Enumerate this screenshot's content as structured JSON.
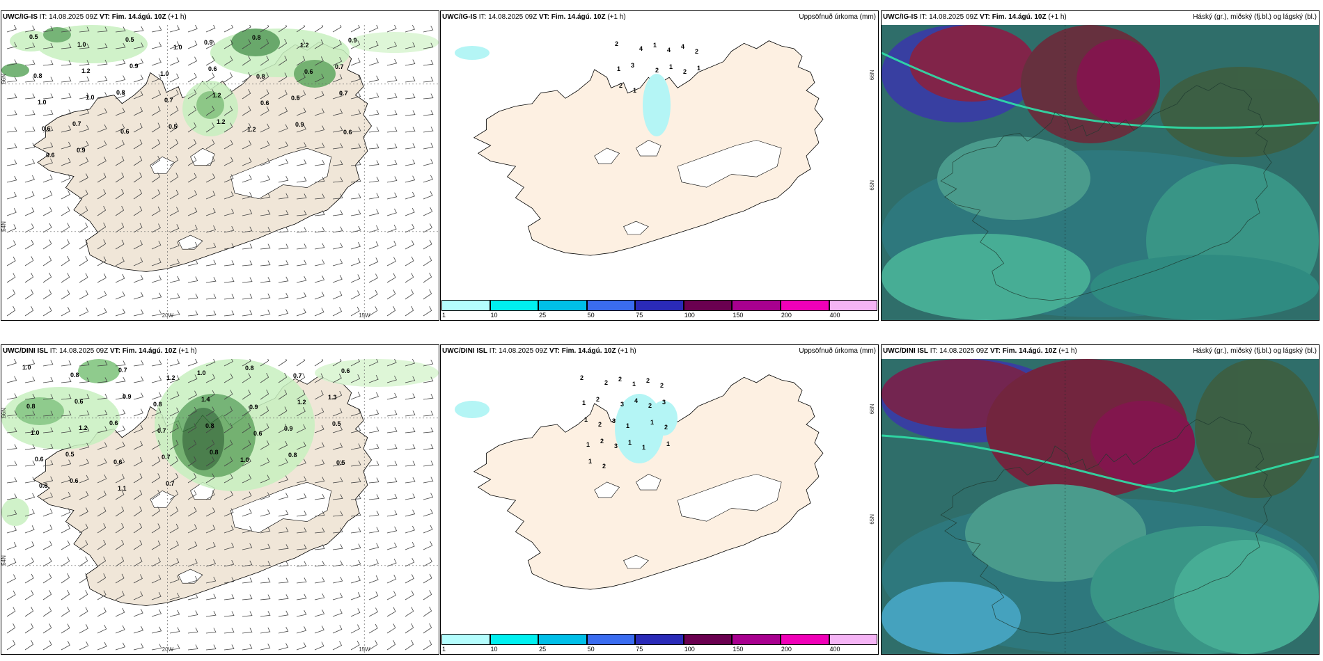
{
  "panels": {
    "p1": {
      "model": "UWC/IG-IS",
      "it_label": "IT:",
      "it": "14.08.2025 09Z",
      "vt_label": "VT:",
      "vt": "Fim. 14.ágú. 10Z",
      "lead": "(+1 h)",
      "right_title": ""
    },
    "p2": {
      "model": "UWC/IG-IS",
      "it_label": "IT:",
      "it": "14.08.2025 09Z",
      "vt_label": "VT:",
      "vt": "Fim. 14.ágú. 10Z",
      "lead": "(+1 h)",
      "right_title": "Uppsöfnuð úrkoma (mm)"
    },
    "p3": {
      "model": "UWC/IG-IS",
      "it_label": "IT:",
      "it": "14.08.2025 09Z",
      "vt_label": "VT:",
      "vt": "Fim. 14.ágú. 10Z",
      "lead": "(+1 h)",
      "right_title": "Háský (gr.), miðský (fj.bl.) og lágský (bl.)"
    },
    "p4": {
      "model": "UWC/DINI ISL",
      "it_label": "IT:",
      "it": "14.08.2025 09Z",
      "vt_label": "VT:",
      "vt": "Fim. 14.ágú. 10Z",
      "lead": "(+1 h)",
      "right_title": ""
    },
    "p5": {
      "model": "UWC/DINI ISL",
      "it_label": "IT:",
      "it": "14.08.2025 09Z",
      "vt_label": "VT:",
      "vt": "Fim. 14.ágú. 10Z",
      "lead": "(+1 h)",
      "right_title": "Uppsöfnuð úrkoma (mm)"
    },
    "p6": {
      "model": "UWC/DINI ISL",
      "it_label": "IT:",
      "it": "14.08.2025 09Z",
      "vt_label": "VT:",
      "vt": "Fim. 14.ágú. 10Z",
      "lead": "(+1 h)",
      "right_title": "Háský (gr.), miðský (fj.bl.) og lágský (bl.)"
    }
  },
  "axis_labels": {
    "lon_20w": "20W",
    "lon_15w": "15W",
    "lat_66n": "66N",
    "lat_64n": "64N",
    "lat_65n": "65N"
  },
  "colorbar": {
    "colors": [
      "#b4fdfd",
      "#00f0f0",
      "#00bfe8",
      "#3a6cf0",
      "#2a2ab8",
      "#6a0050",
      "#a8008f",
      "#f000b8",
      "#f5b4f5"
    ],
    "labels": [
      "1",
      "10",
      "25",
      "50",
      "75",
      "100",
      "150",
      "200",
      "400"
    ]
  },
  "precip_top": [
    "0.5",
    "1.0",
    "0.5",
    "1.0",
    "0.9",
    "0.8",
    "1.2",
    "0.9",
    "0.8",
    "1.2",
    "0.9",
    "1.0",
    "0.6",
    "0.8",
    "0.6",
    "0.7",
    "1.0",
    "1.0",
    "0.8",
    "0.7",
    "1.2",
    "0.6",
    "0.5",
    "0.7",
    "0.6",
    "0.7",
    "0.6",
    "0.5",
    "1.2",
    "1.2",
    "0.9",
    "0.6",
    "0.6",
    "0.9"
  ],
  "precip_bottom": [
    "1.0",
    "0.8",
    "0.7",
    "1.2",
    "1.0",
    "0.8",
    "0.7",
    "0.6",
    "0.8",
    "0.6",
    "0.9",
    "0.8",
    "1.4",
    "0.9",
    "1.2",
    "1.3",
    "1.0",
    "1.2",
    "0.6",
    "0.7",
    "0.8",
    "0.6",
    "0.9",
    "0.5",
    "0.6",
    "0.5",
    "0.6",
    "0.7",
    "0.8",
    "1.0",
    "0.8",
    "0.5",
    "0.8",
    "0.6",
    "1.1",
    "0.7"
  ],
  "accum_top": [
    "2",
    "4",
    "1",
    "4",
    "4",
    "2",
    "1",
    "3",
    "2",
    "1",
    "2",
    "1",
    "2",
    "1"
  ],
  "accum_bottom": [
    "2",
    "2",
    "2",
    "1",
    "2",
    "2",
    "1",
    "2",
    "3",
    "4",
    "2",
    "3",
    "1",
    "2",
    "3",
    "1",
    "1",
    "2",
    "1",
    "2",
    "3",
    "1",
    "1",
    "1",
    "1",
    "2"
  ]
}
